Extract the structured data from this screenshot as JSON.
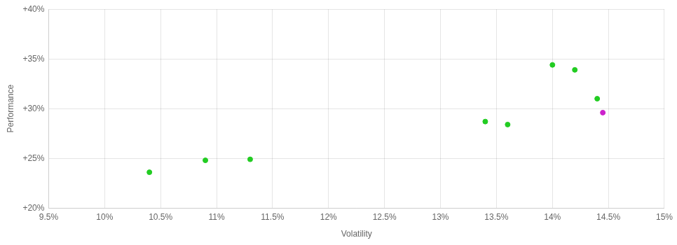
{
  "chart_data": {
    "type": "scatter",
    "x_label": "Volatility",
    "y_label": "Performance",
    "series": [
      {
        "color": "#22cc22",
        "x": [
          0.104,
          0.109,
          0.113,
          0.134,
          0.136,
          0.14,
          0.142,
          0.144
        ],
        "values": [
          0.236,
          0.248,
          0.249,
          0.287,
          0.284,
          0.344,
          0.339,
          0.31
        ]
      },
      {
        "color": "#cc22cc",
        "x": [
          0.1445
        ],
        "values": [
          0.296
        ]
      }
    ],
    "xlim": [
      0.095,
      0.15
    ],
    "ylim": [
      0.2,
      0.4
    ],
    "xticks": [
      {
        "value": 0.095,
        "label": "9.5%"
      },
      {
        "value": 0.1,
        "label": "10%"
      },
      {
        "value": 0.105,
        "label": "10.5%"
      },
      {
        "value": 0.11,
        "label": "11%"
      },
      {
        "value": 0.115,
        "label": "11.5%"
      },
      {
        "value": 0.12,
        "label": "12%"
      },
      {
        "value": 0.125,
        "label": "12.5%"
      },
      {
        "value": 0.13,
        "label": "13%"
      },
      {
        "value": 0.135,
        "label": "13.5%"
      },
      {
        "value": 0.14,
        "label": "14%"
      },
      {
        "value": 0.145,
        "label": "14.5%"
      },
      {
        "value": 0.15,
        "label": "15%"
      }
    ],
    "yticks": [
      {
        "value": 0.2,
        "label": "+20%"
      },
      {
        "value": 0.25,
        "label": "+25%"
      },
      {
        "value": 0.3,
        "label": "+30%"
      },
      {
        "value": 0.35,
        "label": "+35%"
      },
      {
        "value": 0.4,
        "label": "+40%"
      }
    ],
    "grid": true
  }
}
